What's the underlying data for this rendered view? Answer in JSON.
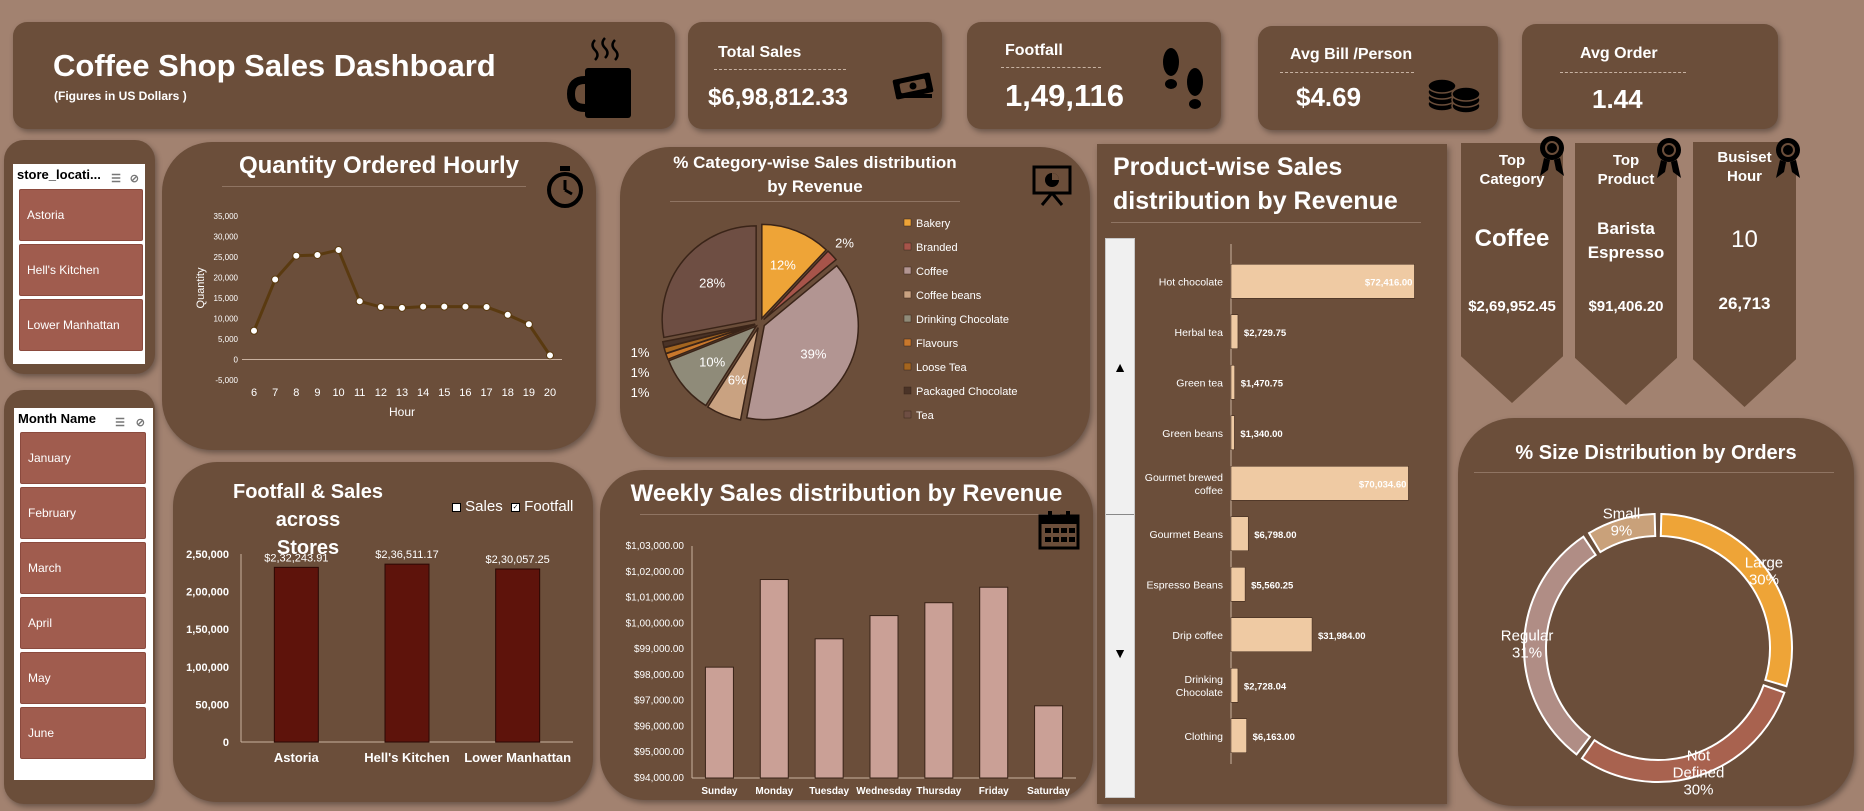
{
  "header": {
    "title": "Coffee Shop Sales Dashboard",
    "subtitle": "(Figures in US Dollars )"
  },
  "kpis": {
    "total_sales": {
      "label": "Total Sales",
      "value": "$6,98,812.33"
    },
    "footfall": {
      "label": "Footfall",
      "value": "1,49,116"
    },
    "avg_bill": {
      "label": "Avg Bill /Person",
      "value": "$4.69"
    },
    "avg_order": {
      "label": "Avg Order",
      "value": "1.44"
    }
  },
  "slicers": {
    "store": {
      "title": "store_locati...",
      "items": [
        "Astoria",
        "Hell's Kitchen",
        "Lower Manhattan"
      ]
    },
    "month": {
      "title": "Month Name",
      "items": [
        "January",
        "February",
        "March",
        "April",
        "May",
        "June"
      ]
    }
  },
  "highlights": {
    "top_category": {
      "title_line1": "Top",
      "title_line2": "Category",
      "name": "Coffee",
      "value": "$2,69,952.45"
    },
    "top_product": {
      "title_line1": "Top",
      "title_line2": "Product",
      "name_line1": "Barista",
      "name_line2": "Espresso",
      "value": "$91,406.20"
    },
    "busiest_hour": {
      "title_line1": "Busiset",
      "title_line2": "Hour",
      "name": "10",
      "value": "26,713"
    }
  },
  "colors": {
    "panel": "#6b4e3a",
    "background": "#a28270",
    "bar_dark": "#5e130b",
    "bar_light": "#caa096",
    "product_bar": "#efcaa3",
    "accent": "#eea437"
  },
  "chart_data": [
    {
      "id": "hourly",
      "type": "line",
      "title": "Quantity Ordered Hourly",
      "xlabel": "Hour",
      "ylabel": "Quantity",
      "x": [
        6,
        7,
        8,
        9,
        10,
        11,
        12,
        13,
        14,
        15,
        16,
        17,
        18,
        19,
        20
      ],
      "y": [
        7000,
        19500,
        25300,
        25500,
        26713,
        14200,
        12800,
        12600,
        12900,
        12900,
        12900,
        12800,
        10900,
        8600,
        1000
      ],
      "ylim": [
        -5000,
        35000
      ],
      "yticks": [
        "35,000",
        "30,000",
        "25,000",
        "20,000",
        "15,000",
        "10,000",
        "5,000",
        "0",
        "-5,000"
      ]
    },
    {
      "id": "category",
      "type": "pie",
      "title_line1": "% Category-wise Sales distribution",
      "title_line2": "by Revenue",
      "labels": [
        "Bakery",
        "Branded",
        "Coffee",
        "Coffee beans",
        "Drinking Chocolate",
        "Flavours",
        "Loose Tea",
        "Packaged Chocolate",
        "Tea"
      ],
      "values": [
        12,
        2,
        39,
        6,
        10,
        1,
        1,
        1,
        28
      ],
      "value_labels": [
        "12%",
        "2%",
        "39%",
        "6%",
        "10%",
        "1%",
        "1%",
        "1%",
        "28%"
      ],
      "colors": [
        "#eea437",
        "#a7544a",
        "#b29592",
        "#c9a281",
        "#8f8b79",
        "#c9782c",
        "#a4651f",
        "#4a3327",
        "#6e4e43"
      ]
    },
    {
      "id": "stores",
      "type": "bar",
      "title_line1": "Footfall & Sales across",
      "title_line2": "Stores",
      "legend": [
        "Sales",
        "Footfall"
      ],
      "categories": [
        "Astoria",
        "Hell's Kitchen",
        "Lower Manhattan"
      ],
      "values": [
        232243.91,
        236511.17,
        230057.25
      ],
      "value_labels": [
        "$2,32,243.91",
        "$2,36,511.17",
        "$2,30,057.25"
      ],
      "ylim": [
        0,
        250000
      ],
      "yticks": [
        "2,50,000",
        "2,00,000",
        "1,50,000",
        "1,00,000",
        "50,000",
        "0"
      ]
    },
    {
      "id": "weekly",
      "type": "bar",
      "title": "Weekly Sales distribution by Revenue",
      "categories": [
        "Sunday",
        "Monday",
        "Tuesday",
        "Wednesday",
        "Thursday",
        "Friday",
        "Saturday"
      ],
      "values": [
        98300,
        101700,
        99400,
        100300,
        100800,
        101400,
        96800
      ],
      "ylim": [
        94000,
        103000
      ],
      "yticks": [
        "$1,03,000.00",
        "$1,02,000.00",
        "$1,01,000.00",
        "$1,00,000.00",
        "$99,000.00",
        "$98,000.00",
        "$97,000.00",
        "$96,000.00",
        "$95,000.00",
        "$94,000.00"
      ]
    },
    {
      "id": "products",
      "type": "bar",
      "orientation": "horizontal",
      "title_line1": "Product-wise Sales",
      "title_line2": "distribution  by Revenue",
      "categories": [
        "Hot chocolate",
        "Herbal tea",
        "Green tea",
        "Green beans",
        "Gourmet brewed coffee",
        "Gourmet Beans",
        "Espresso Beans",
        "Drip coffee",
        "Drinking Chocolate",
        "Clothing"
      ],
      "values": [
        72416,
        2729.75,
        1470.75,
        1340,
        70034.6,
        6798,
        5560.25,
        31984,
        2728.04,
        6163
      ],
      "value_labels": [
        "$72,416.00",
        "$2,729.75",
        "$1,470.75",
        "$1,340.00",
        "$70,034.60",
        "$6,798.00",
        "$5,560.25",
        "$31,984.00",
        "$2,728.04",
        "$6,163.00"
      ]
    },
    {
      "id": "sizes",
      "type": "pie",
      "subtype": "donut",
      "title": "% Size Distribution by Orders",
      "labels": [
        "Large",
        "Not Defined",
        "Regular",
        "Small"
      ],
      "values": [
        30,
        30,
        31,
        9
      ],
      "value_labels": [
        "30%",
        "30%",
        "31%",
        "9%"
      ],
      "colors": [
        "#eea437",
        "#a8624f",
        "#b08d85",
        "#c9a17a"
      ]
    }
  ]
}
